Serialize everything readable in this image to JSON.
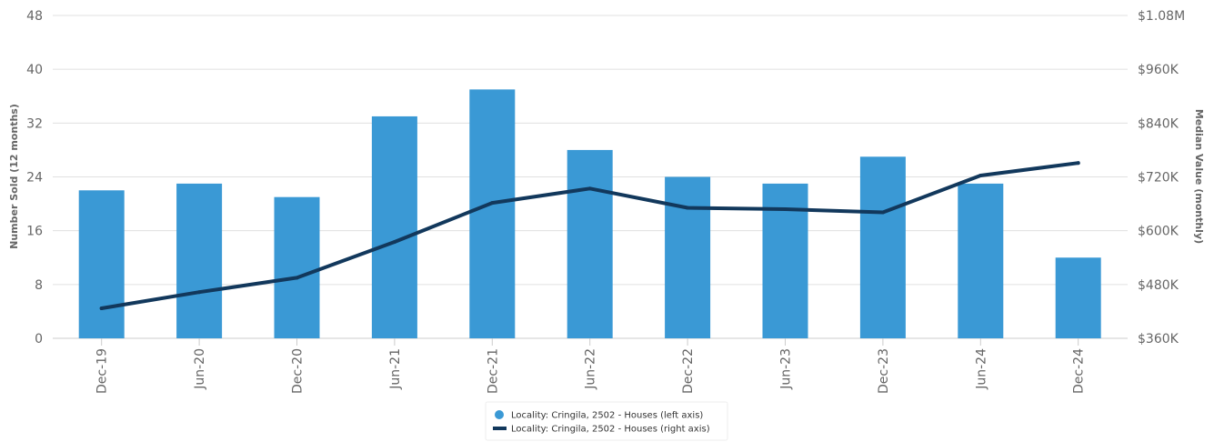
{
  "chart_data": {
    "type": "bar",
    "categories": [
      "Dec-19",
      "Jun-20",
      "Dec-20",
      "Jun-21",
      "Dec-21",
      "Jun-22",
      "Dec-22",
      "Jun-23",
      "Dec-23",
      "Jun-24",
      "Dec-24"
    ],
    "series": [
      {
        "name": "Locality: Cringila, 2502 - Houses (left axis)",
        "type": "bar",
        "axis": "left",
        "color": "#3a99d5",
        "values": [
          22,
          23,
          21,
          33,
          37,
          28,
          24,
          23,
          27,
          23,
          12
        ]
      },
      {
        "name": "Locality: Cringila, 2502 - Houses (right axis)",
        "type": "line",
        "axis": "right",
        "color": "#12385c",
        "values": [
          427000,
          463000,
          495000,
          575000,
          662000,
          694000,
          651000,
          648000,
          641000,
          723000,
          751000
        ]
      }
    ],
    "ylabel": "Number Sold (12 months)",
    "y2label": "Median Value (monthly)",
    "ylim": [
      0,
      48
    ],
    "yticks": [
      0,
      8,
      16,
      24,
      32,
      40,
      48
    ],
    "y2lim": [
      360000,
      1080000
    ],
    "y2ticks": [
      360000,
      480000,
      600000,
      720000,
      840000,
      960000,
      1080000
    ],
    "y2tick_labels": [
      "$360K",
      "$480K",
      "$600K",
      "$720K",
      "$840K",
      "$960K",
      "$1.08M"
    ],
    "grid": true,
    "legend_position": "bottom-center"
  }
}
